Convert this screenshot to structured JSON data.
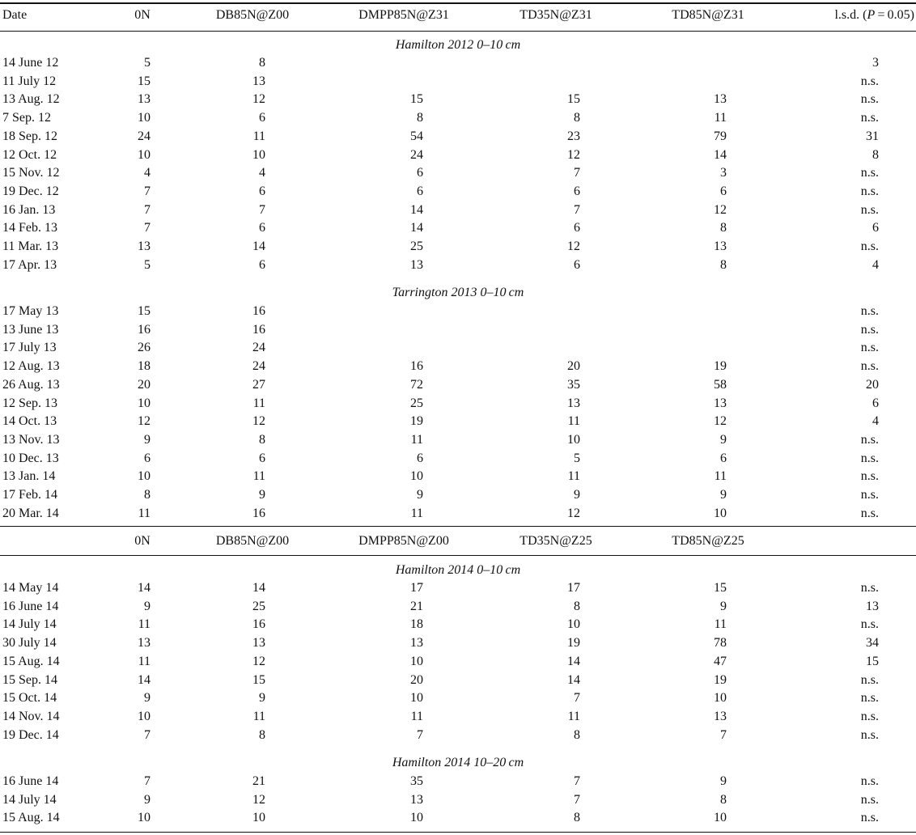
{
  "header1": {
    "date": "Date",
    "cols": [
      "0N",
      "DB85N@Z00",
      "DMPP85N@Z31",
      "TD35N@Z31",
      "TD85N@Z31"
    ],
    "lsd_prefix": "l.s.d. (",
    "lsd_p": "P",
    "lsd_suffix": " = 0.05)"
  },
  "header2": {
    "cols": [
      "0N",
      "DB85N@Z00",
      "DMPP85N@Z00",
      "TD35N@Z25",
      "TD85N@Z25"
    ]
  },
  "sections": [
    {
      "title": "Hamilton 2012 0–10 cm",
      "rows": [
        {
          "date": "14 June 12",
          "v": [
            "5",
            "8",
            "",
            "",
            "",
            "3"
          ]
        },
        {
          "date": "11 July 12",
          "v": [
            "15",
            "13",
            "",
            "",
            "",
            "n.s."
          ]
        },
        {
          "date": "13 Aug. 12",
          "v": [
            "13",
            "12",
            "15",
            "15",
            "13",
            "n.s."
          ]
        },
        {
          "date": "7 Sep. 12",
          "v": [
            "10",
            "6",
            "8",
            "8",
            "11",
            "n.s."
          ]
        },
        {
          "date": "18 Sep. 12",
          "v": [
            "24",
            "11",
            "54",
            "23",
            "79",
            "31"
          ]
        },
        {
          "date": "12 Oct. 12",
          "v": [
            "10",
            "10",
            "24",
            "12",
            "14",
            "8"
          ]
        },
        {
          "date": "15 Nov. 12",
          "v": [
            "4",
            "4",
            "6",
            "7",
            "3",
            "n.s."
          ]
        },
        {
          "date": "19 Dec. 12",
          "v": [
            "7",
            "6",
            "6",
            "6",
            "6",
            "n.s."
          ]
        },
        {
          "date": "16 Jan. 13",
          "v": [
            "7",
            "7",
            "14",
            "7",
            "12",
            "n.s."
          ]
        },
        {
          "date": "14 Feb. 13",
          "v": [
            "7",
            "6",
            "14",
            "6",
            "8",
            "6"
          ]
        },
        {
          "date": "11 Mar. 13",
          "v": [
            "13",
            "14",
            "25",
            "12",
            "13",
            "n.s."
          ]
        },
        {
          "date": "17 Apr. 13",
          "v": [
            "5",
            "6",
            "13",
            "6",
            "8",
            "4"
          ]
        }
      ]
    },
    {
      "title": "Tarrington 2013 0–10 cm",
      "rows": [
        {
          "date": "17 May 13",
          "v": [
            "15",
            "16",
            "",
            "",
            "",
            "n.s."
          ]
        },
        {
          "date": "13 June 13",
          "v": [
            "16",
            "16",
            "",
            "",
            "",
            "n.s."
          ]
        },
        {
          "date": "17 July 13",
          "v": [
            "26",
            "24",
            "",
            "",
            "",
            "n.s."
          ]
        },
        {
          "date": "12 Aug. 13",
          "v": [
            "18",
            "24",
            "16",
            "20",
            "19",
            "n.s."
          ]
        },
        {
          "date": "26 Aug. 13",
          "v": [
            "20",
            "27",
            "72",
            "35",
            "58",
            "20"
          ]
        },
        {
          "date": "12 Sep. 13",
          "v": [
            "10",
            "11",
            "25",
            "13",
            "13",
            "6"
          ]
        },
        {
          "date": "14 Oct. 13",
          "v": [
            "12",
            "12",
            "19",
            "11",
            "12",
            "4"
          ]
        },
        {
          "date": "13 Nov. 13",
          "v": [
            "9",
            "8",
            "11",
            "10",
            "9",
            "n.s."
          ]
        },
        {
          "date": "10 Dec. 13",
          "v": [
            "6",
            "6",
            "6",
            "5",
            "6",
            "n.s."
          ]
        },
        {
          "date": "13 Jan. 14",
          "v": [
            "10",
            "11",
            "10",
            "11",
            "11",
            "n.s."
          ]
        },
        {
          "date": "17 Feb. 14",
          "v": [
            "8",
            "9",
            "9",
            "9",
            "9",
            "n.s."
          ]
        },
        {
          "date": "20 Mar. 14",
          "v": [
            "11",
            "16",
            "11",
            "12",
            "10",
            "n.s."
          ]
        }
      ]
    },
    {
      "title": "Hamilton 2014 0–10 cm",
      "rows": [
        {
          "date": "14 May 14",
          "v": [
            "14",
            "14",
            "17",
            "17",
            "15",
            "n.s."
          ]
        },
        {
          "date": "16 June 14",
          "v": [
            "9",
            "25",
            "21",
            "8",
            "9",
            "13"
          ]
        },
        {
          "date": "14 July 14",
          "v": [
            "11",
            "16",
            "18",
            "10",
            "11",
            "n.s."
          ]
        },
        {
          "date": "30 July 14",
          "v": [
            "13",
            "13",
            "13",
            "19",
            "78",
            "34"
          ]
        },
        {
          "date": "15 Aug. 14",
          "v": [
            "11",
            "12",
            "10",
            "14",
            "47",
            "15"
          ]
        },
        {
          "date": "15 Sep. 14",
          "v": [
            "14",
            "15",
            "20",
            "14",
            "19",
            "n.s."
          ]
        },
        {
          "date": "15 Oct. 14",
          "v": [
            "9",
            "9",
            "10",
            "7",
            "10",
            "n.s."
          ]
        },
        {
          "date": "14 Nov. 14",
          "v": [
            "10",
            "11",
            "11",
            "11",
            "13",
            "n.s."
          ]
        },
        {
          "date": "19 Dec. 14",
          "v": [
            "7",
            "8",
            "7",
            "8",
            "7",
            "n.s."
          ]
        }
      ]
    },
    {
      "title": "Hamilton 2014 10–20 cm",
      "rows": [
        {
          "date": "16 June 14",
          "v": [
            "7",
            "21",
            "35",
            "7",
            "9",
            "n.s."
          ]
        },
        {
          "date": "14 July 14",
          "v": [
            "9",
            "12",
            "13",
            "7",
            "8",
            "n.s."
          ]
        },
        {
          "date": "15 Aug. 14",
          "v": [
            "10",
            "10",
            "10",
            "8",
            "10",
            "n.s."
          ]
        }
      ]
    }
  ]
}
